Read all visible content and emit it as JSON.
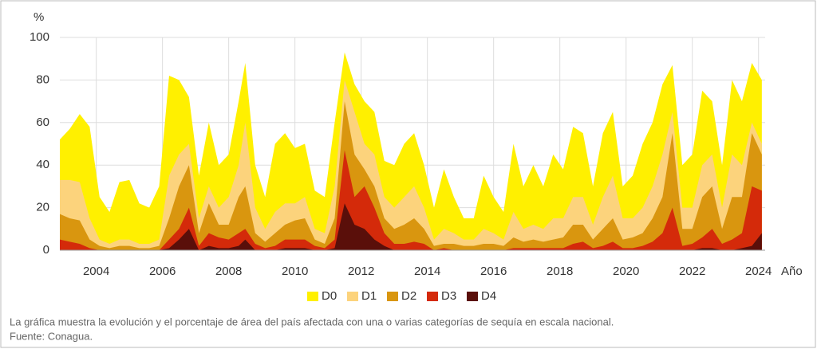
{
  "chart_data": {
    "type": "area",
    "y_label": "%",
    "x_label": "Año",
    "caption": [
      "La gráfica muestra la evolución y el porcentaje de área del país afectada con una o varias categorías de sequía en escala nacional.",
      "Fuente: Conagua."
    ],
    "x": [
      2002.9,
      2003.2,
      2003.5,
      2003.8,
      2004.1,
      2004.4,
      2004.7,
      2005.0,
      2005.3,
      2005.6,
      2005.9,
      2006.2,
      2006.5,
      2006.8,
      2007.1,
      2007.4,
      2007.7,
      2008.0,
      2008.3,
      2008.5,
      2008.8,
      2009.1,
      2009.4,
      2009.7,
      2010.0,
      2010.3,
      2010.6,
      2010.9,
      2011.2,
      2011.5,
      2011.8,
      2012.1,
      2012.4,
      2012.7,
      2013.0,
      2013.3,
      2013.6,
      2013.9,
      2014.2,
      2014.5,
      2014.8,
      2015.1,
      2015.4,
      2015.7,
      2016.0,
      2016.3,
      2016.6,
      2016.9,
      2017.2,
      2017.5,
      2017.8,
      2018.1,
      2018.4,
      2018.7,
      2019.0,
      2019.3,
      2019.6,
      2019.9,
      2020.2,
      2020.5,
      2020.8,
      2021.1,
      2021.4,
      2021.7,
      2022.0,
      2022.3,
      2022.6,
      2022.9,
      2023.2,
      2023.5,
      2023.8,
      2024.1
    ],
    "series": [
      {
        "name": "D0",
        "color": "#fff000",
        "values": [
          52,
          57,
          64,
          58,
          25,
          18,
          32,
          33,
          22,
          20,
          30,
          82,
          80,
          72,
          35,
          60,
          40,
          45,
          70,
          88,
          40,
          25,
          50,
          55,
          48,
          50,
          28,
          25,
          60,
          93,
          78,
          70,
          65,
          42,
          40,
          50,
          55,
          40,
          20,
          38,
          25,
          15,
          15,
          35,
          25,
          18,
          50,
          30,
          40,
          30,
          45,
          38,
          58,
          55,
          30,
          55,
          65,
          30,
          35,
          50,
          60,
          78,
          87,
          40,
          45,
          75,
          70,
          40,
          80,
          70,
          88,
          80
        ]
      },
      {
        "name": "D1",
        "color": "#fcd37c",
        "values": [
          33,
          33,
          32,
          15,
          5,
          3,
          5,
          5,
          3,
          3,
          5,
          35,
          45,
          50,
          15,
          30,
          20,
          25,
          40,
          60,
          20,
          10,
          18,
          22,
          22,
          25,
          10,
          8,
          30,
          80,
          65,
          50,
          45,
          25,
          20,
          25,
          30,
          20,
          5,
          10,
          8,
          5,
          5,
          10,
          8,
          5,
          18,
          10,
          12,
          10,
          15,
          15,
          25,
          25,
          12,
          25,
          35,
          15,
          15,
          20,
          30,
          45,
          65,
          20,
          20,
          40,
          45,
          20,
          45,
          40,
          60,
          50
        ]
      },
      {
        "name": "D2",
        "color": "#d9960f",
        "values": [
          17,
          15,
          14,
          5,
          2,
          1,
          2,
          2,
          1,
          1,
          2,
          15,
          30,
          40,
          8,
          22,
          12,
          12,
          25,
          30,
          8,
          4,
          8,
          12,
          14,
          15,
          5,
          3,
          15,
          70,
          45,
          38,
          30,
          15,
          10,
          12,
          15,
          10,
          2,
          3,
          3,
          2,
          2,
          3,
          3,
          2,
          6,
          4,
          5,
          4,
          5,
          6,
          12,
          12,
          5,
          10,
          15,
          5,
          6,
          8,
          15,
          25,
          55,
          10,
          10,
          25,
          30,
          10,
          25,
          25,
          55,
          45
        ]
      },
      {
        "name": "D3",
        "color": "#d42a0a",
        "values": [
          5,
          4,
          3,
          1,
          0,
          0,
          0,
          0,
          0,
          0,
          0,
          5,
          10,
          20,
          2,
          8,
          6,
          5,
          8,
          10,
          3,
          1,
          2,
          5,
          5,
          5,
          2,
          1,
          5,
          47,
          25,
          30,
          20,
          8,
          3,
          3,
          4,
          3,
          0,
          1,
          0,
          0,
          0,
          0,
          0,
          0,
          1,
          1,
          1,
          1,
          1,
          1,
          3,
          4,
          1,
          2,
          4,
          1,
          1,
          2,
          4,
          8,
          20,
          2,
          3,
          6,
          10,
          3,
          5,
          8,
          30,
          28
        ]
      },
      {
        "name": "D4",
        "color": "#5a0f0a",
        "values": [
          0,
          0,
          0,
          0,
          0,
          0,
          0,
          0,
          0,
          0,
          0,
          1,
          5,
          10,
          0,
          2,
          1,
          1,
          2,
          5,
          0,
          0,
          0,
          1,
          1,
          1,
          0,
          0,
          1,
          22,
          12,
          10,
          5,
          2,
          0,
          0,
          0,
          0,
          0,
          0,
          0,
          0,
          0,
          0,
          0,
          0,
          0,
          0,
          0,
          0,
          0,
          0,
          0,
          0,
          0,
          0,
          0,
          0,
          0,
          0,
          0,
          0,
          0,
          0,
          0,
          1,
          1,
          0,
          0,
          1,
          2,
          8
        ]
      }
    ],
    "xlim": [
      2002.9,
      2024.2
    ],
    "xticks": [
      2004,
      2006,
      2008,
      2010,
      2012,
      2014,
      2016,
      2018,
      2020,
      2022,
      2024
    ],
    "ylim": [
      0,
      100
    ],
    "yticks": [
      0,
      20,
      40,
      60,
      80,
      100
    ],
    "grid": true,
    "legend": "bottom"
  }
}
